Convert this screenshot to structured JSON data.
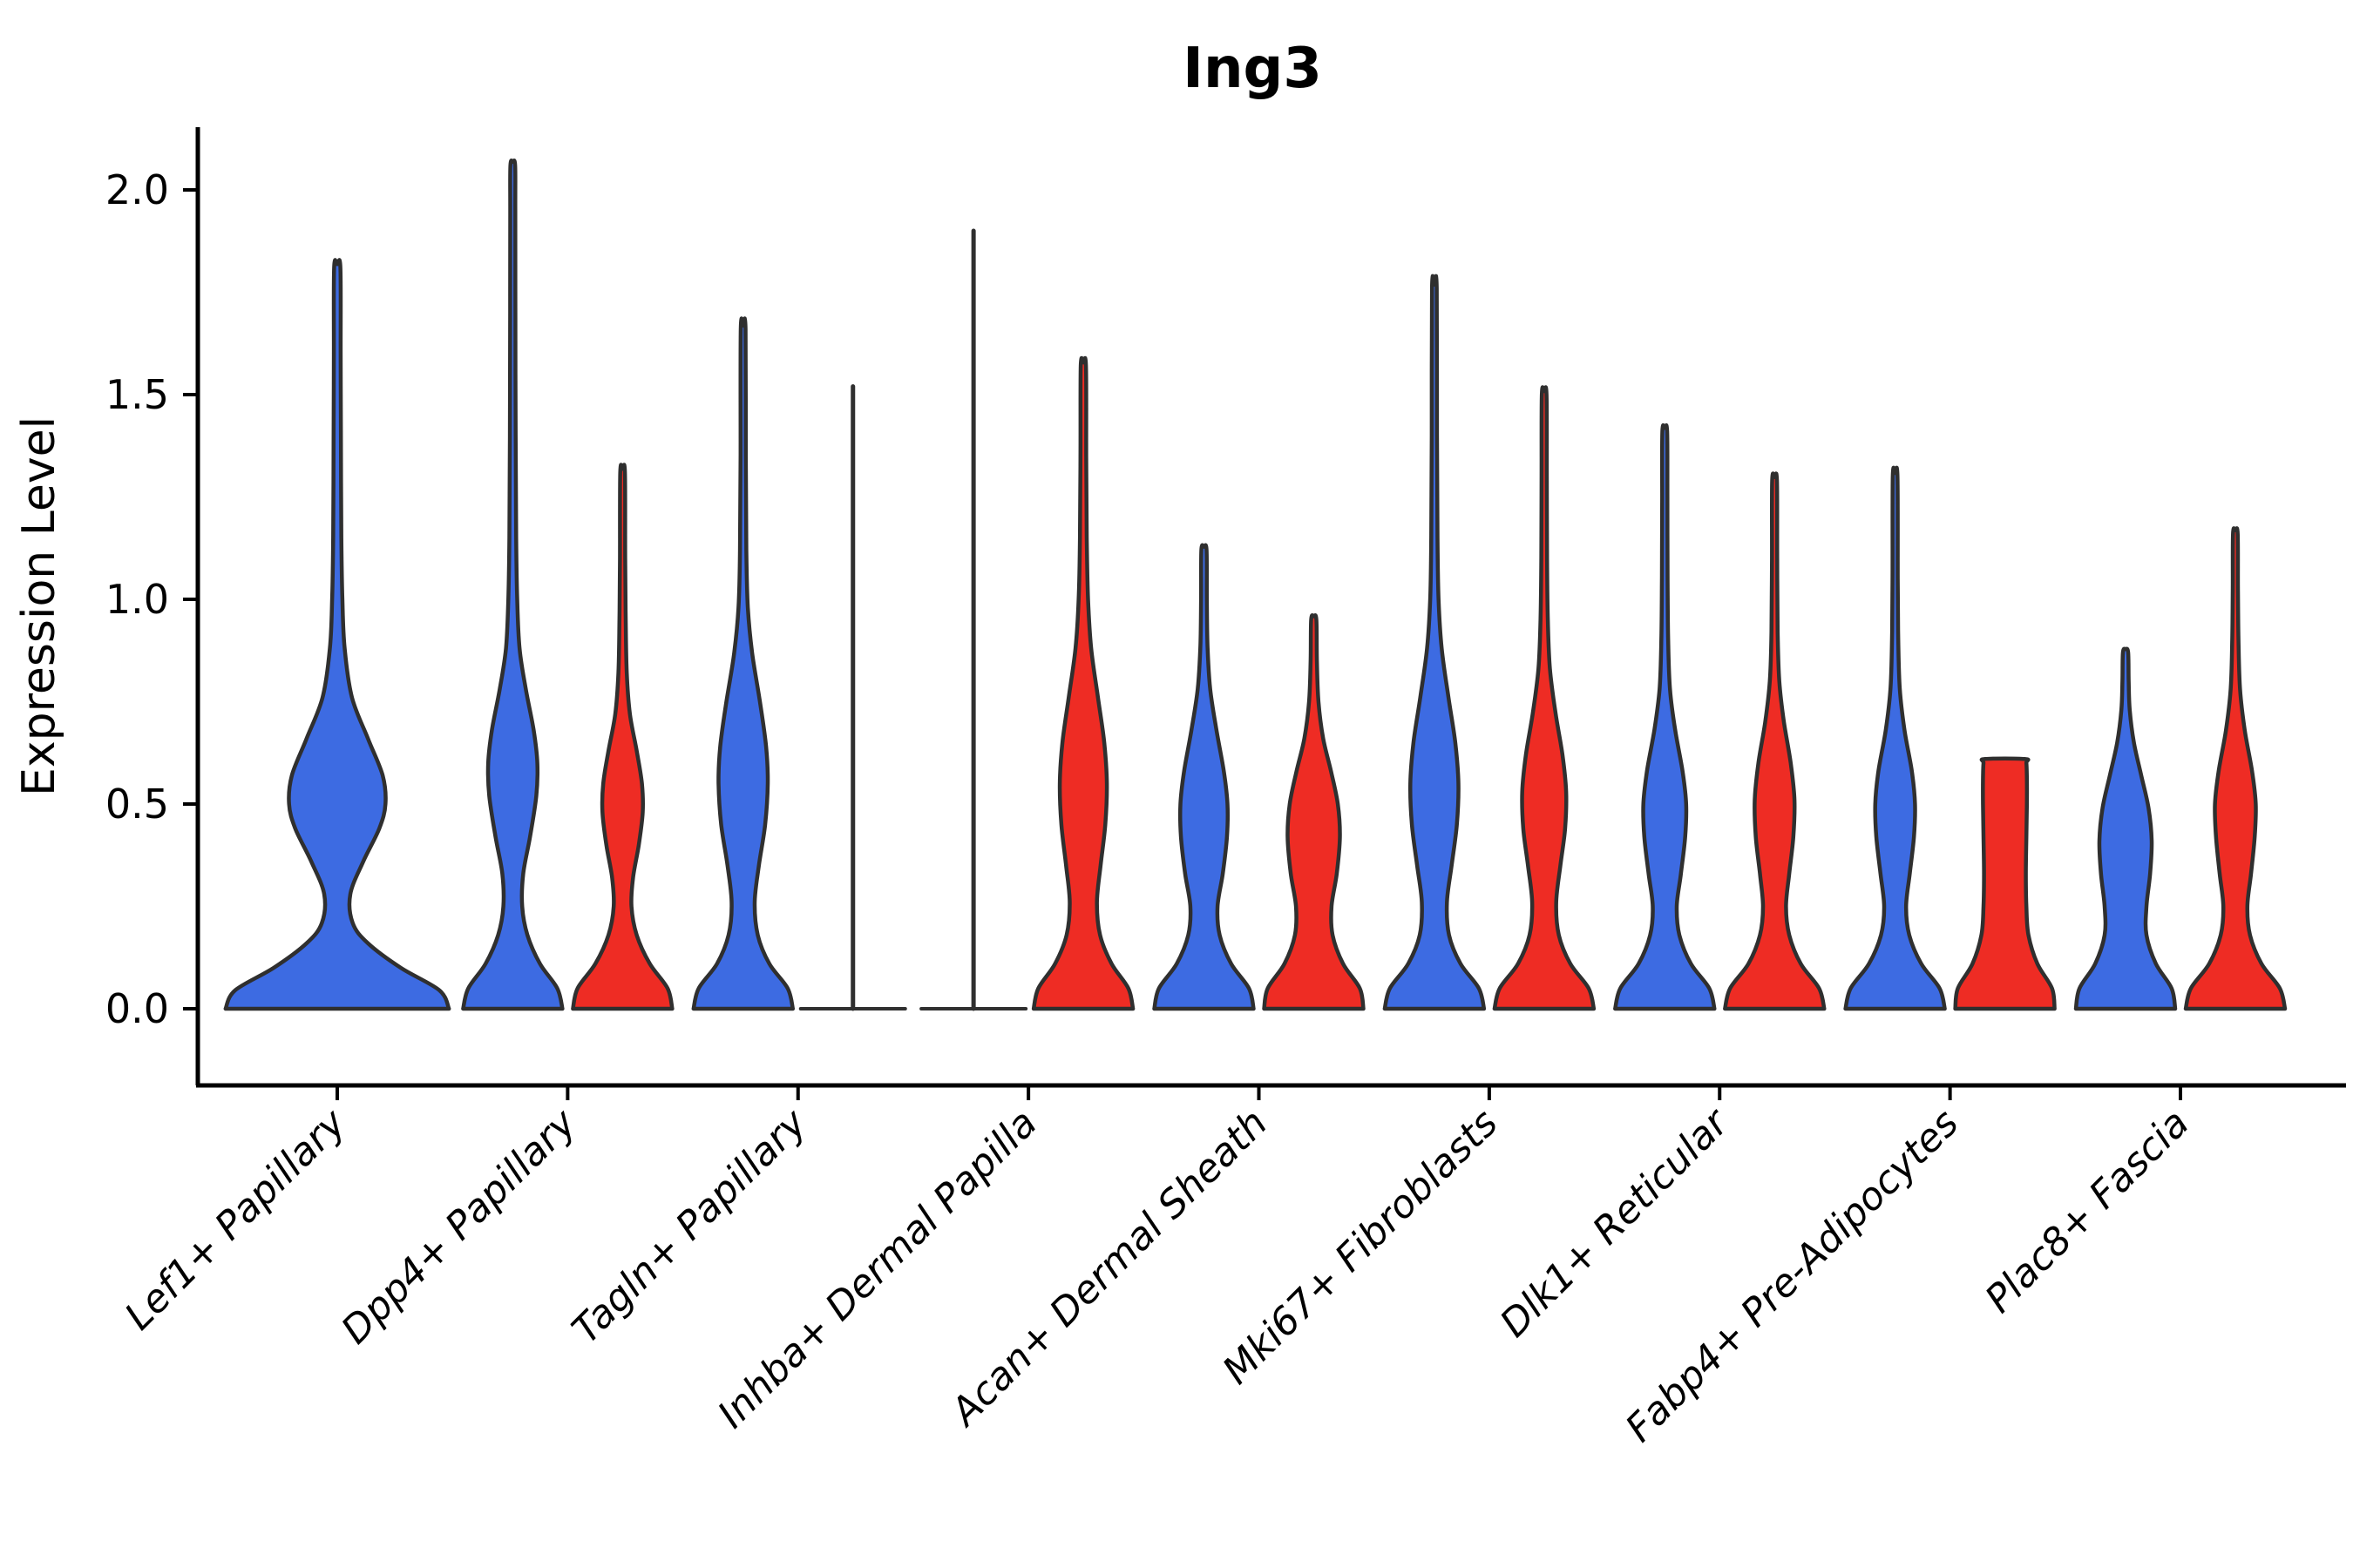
{
  "title": "Ing3",
  "chart_data": {
    "type": "violin",
    "title": "Ing3",
    "xlabel": "",
    "ylabel": "Expression Level",
    "ylim": [
      -0.19,
      2.35
    ],
    "yticks": [
      0.0,
      0.5,
      1.0,
      1.5,
      2.0
    ],
    "ytick_labels": [
      "0.0",
      "0.5",
      "1.0",
      "1.5",
      "2.0"
    ],
    "grid": "off",
    "legend": "none",
    "colors": {
      "blue": "#3D6BE2",
      "red": "#EE2C24",
      "outline": "#2F2F2F",
      "axis": "#000000"
    },
    "categories": [
      "Lef1+ Papillary",
      "Dpp4+ Papillary",
      "Tagln+ Papillary",
      "Inhba+ Dermal Papilla",
      "Acan+ Dermal Sheath",
      "Mki67+ Fibroblasts",
      "Dlk1+ Reticular",
      "Fabp4+ Pre-Adipocytes",
      "Plac8+ Fascia"
    ],
    "violins": [
      {
        "category": "Lef1+ Papillary",
        "side": "center",
        "color": "blue",
        "shape": "violin",
        "max_expression": 1.81,
        "width_scale": 2.17,
        "profile": [
          [
            0,
            0.985
          ],
          [
            0.045,
            0.9
          ],
          [
            0.1,
            0.56
          ],
          [
            0.16,
            0.27
          ],
          [
            0.21,
            0.135
          ],
          [
            0.28,
            0.115
          ],
          [
            0.36,
            0.23
          ],
          [
            0.44,
            0.37
          ],
          [
            0.5,
            0.425
          ],
          [
            0.57,
            0.4
          ],
          [
            0.66,
            0.27
          ],
          [
            0.76,
            0.13
          ],
          [
            0.88,
            0.065
          ],
          [
            1.0,
            0.045
          ],
          [
            1.15,
            0.036
          ],
          [
            1.4,
            0.032
          ],
          [
            1.6,
            0.03
          ],
          [
            1.81,
            0.028
          ]
        ]
      },
      {
        "category": "Dpp4+ Papillary",
        "side": "left",
        "color": "blue",
        "shape": "violin",
        "max_expression": 2.06,
        "width_scale": 1,
        "profile": [
          [
            0,
            0.95
          ],
          [
            0.05,
            0.85
          ],
          [
            0.11,
            0.52
          ],
          [
            0.18,
            0.28
          ],
          [
            0.25,
            0.18
          ],
          [
            0.33,
            0.2
          ],
          [
            0.42,
            0.33
          ],
          [
            0.52,
            0.45
          ],
          [
            0.6,
            0.47
          ],
          [
            0.68,
            0.4
          ],
          [
            0.78,
            0.25
          ],
          [
            0.88,
            0.13
          ],
          [
            1.0,
            0.085
          ],
          [
            1.15,
            0.065
          ],
          [
            1.4,
            0.055
          ],
          [
            1.7,
            0.05
          ],
          [
            1.95,
            0.048
          ],
          [
            2.06,
            0.045
          ]
        ]
      },
      {
        "category": "Dpp4+ Papillary",
        "side": "right",
        "color": "red",
        "shape": "violin",
        "max_expression": 1.31,
        "width_scale": 1,
        "profile": [
          [
            0,
            0.95
          ],
          [
            0.05,
            0.86
          ],
          [
            0.11,
            0.52
          ],
          [
            0.18,
            0.27
          ],
          [
            0.25,
            0.17
          ],
          [
            0.32,
            0.2
          ],
          [
            0.4,
            0.31
          ],
          [
            0.48,
            0.385
          ],
          [
            0.55,
            0.37
          ],
          [
            0.63,
            0.27
          ],
          [
            0.72,
            0.14
          ],
          [
            0.82,
            0.08
          ],
          [
            0.95,
            0.06
          ],
          [
            1.1,
            0.05
          ],
          [
            1.31,
            0.045
          ]
        ]
      },
      {
        "category": "Tagln+ Papillary",
        "side": "left",
        "color": "blue",
        "shape": "violin",
        "max_expression": 1.66,
        "width_scale": 1,
        "profile": [
          [
            0,
            0.95
          ],
          [
            0.05,
            0.85
          ],
          [
            0.11,
            0.5
          ],
          [
            0.18,
            0.28
          ],
          [
            0.26,
            0.22
          ],
          [
            0.35,
            0.3
          ],
          [
            0.45,
            0.42
          ],
          [
            0.55,
            0.47
          ],
          [
            0.64,
            0.44
          ],
          [
            0.75,
            0.32
          ],
          [
            0.87,
            0.17
          ],
          [
            0.98,
            0.09
          ],
          [
            1.12,
            0.06
          ],
          [
            1.35,
            0.05
          ],
          [
            1.66,
            0.045
          ]
        ]
      },
      {
        "category": "Tagln+ Papillary",
        "side": "right",
        "color": "red",
        "shape": "line",
        "max_expression": 1.52,
        "width_scale": 1,
        "profile": []
      },
      {
        "category": "Inhba+ Dermal Papilla",
        "side": "left",
        "color": "blue",
        "shape": "line",
        "max_expression": 1.9,
        "width_scale": 1,
        "profile": []
      },
      {
        "category": "Inhba+ Dermal Papilla",
        "side": "right",
        "color": "red",
        "shape": "violin",
        "max_expression": 1.57,
        "width_scale": 1,
        "profile": [
          [
            0,
            0.95
          ],
          [
            0.05,
            0.86
          ],
          [
            0.11,
            0.54
          ],
          [
            0.18,
            0.32
          ],
          [
            0.26,
            0.26
          ],
          [
            0.35,
            0.33
          ],
          [
            0.45,
            0.42
          ],
          [
            0.55,
            0.45
          ],
          [
            0.65,
            0.4
          ],
          [
            0.76,
            0.28
          ],
          [
            0.88,
            0.15
          ],
          [
            1.0,
            0.09
          ],
          [
            1.15,
            0.065
          ],
          [
            1.35,
            0.055
          ],
          [
            1.57,
            0.05
          ]
        ]
      },
      {
        "category": "Acan+ Dermal Sheath",
        "side": "left",
        "color": "blue",
        "shape": "violin",
        "max_expression": 1.12,
        "width_scale": 1,
        "profile": [
          [
            0,
            0.95
          ],
          [
            0.05,
            0.86
          ],
          [
            0.11,
            0.52
          ],
          [
            0.18,
            0.3
          ],
          [
            0.25,
            0.26
          ],
          [
            0.33,
            0.36
          ],
          [
            0.42,
            0.44
          ],
          [
            0.5,
            0.45
          ],
          [
            0.58,
            0.38
          ],
          [
            0.68,
            0.24
          ],
          [
            0.78,
            0.12
          ],
          [
            0.88,
            0.07
          ],
          [
            1.0,
            0.055
          ],
          [
            1.12,
            0.05
          ]
        ]
      },
      {
        "category": "Acan+ Dermal Sheath",
        "side": "right",
        "color": "red",
        "shape": "violin",
        "max_expression": 0.95,
        "width_scale": 1,
        "profile": [
          [
            0,
            0.95
          ],
          [
            0.05,
            0.88
          ],
          [
            0.11,
            0.56
          ],
          [
            0.18,
            0.36
          ],
          [
            0.25,
            0.34
          ],
          [
            0.33,
            0.44
          ],
          [
            0.42,
            0.5
          ],
          [
            0.5,
            0.46
          ],
          [
            0.58,
            0.33
          ],
          [
            0.66,
            0.18
          ],
          [
            0.75,
            0.09
          ],
          [
            0.85,
            0.06
          ],
          [
            0.95,
            0.05
          ]
        ]
      },
      {
        "category": "Mki67+ Fibroblasts",
        "side": "left",
        "color": "blue",
        "shape": "violin",
        "max_expression": 1.76,
        "width_scale": 1,
        "profile": [
          [
            0,
            0.95
          ],
          [
            0.05,
            0.85
          ],
          [
            0.11,
            0.5
          ],
          [
            0.18,
            0.28
          ],
          [
            0.26,
            0.24
          ],
          [
            0.35,
            0.33
          ],
          [
            0.45,
            0.43
          ],
          [
            0.55,
            0.46
          ],
          [
            0.65,
            0.4
          ],
          [
            0.76,
            0.27
          ],
          [
            0.88,
            0.14
          ],
          [
            1.0,
            0.08
          ],
          [
            1.15,
            0.06
          ],
          [
            1.4,
            0.05
          ],
          [
            1.76,
            0.045
          ]
        ]
      },
      {
        "category": "Mki67+ Fibroblasts",
        "side": "right",
        "color": "red",
        "shape": "violin",
        "max_expression": 1.5,
        "width_scale": 1,
        "profile": [
          [
            0,
            0.95
          ],
          [
            0.05,
            0.85
          ],
          [
            0.11,
            0.5
          ],
          [
            0.18,
            0.28
          ],
          [
            0.26,
            0.23
          ],
          [
            0.35,
            0.31
          ],
          [
            0.44,
            0.4
          ],
          [
            0.53,
            0.42
          ],
          [
            0.62,
            0.35
          ],
          [
            0.72,
            0.22
          ],
          [
            0.83,
            0.11
          ],
          [
            0.95,
            0.07
          ],
          [
            1.1,
            0.055
          ],
          [
            1.3,
            0.05
          ],
          [
            1.5,
            0.045
          ]
        ]
      },
      {
        "category": "Dlk1+ Reticular",
        "side": "left",
        "color": "blue",
        "shape": "violin",
        "max_expression": 1.41,
        "width_scale": 1,
        "profile": [
          [
            0,
            0.95
          ],
          [
            0.05,
            0.85
          ],
          [
            0.11,
            0.5
          ],
          [
            0.18,
            0.28
          ],
          [
            0.25,
            0.23
          ],
          [
            0.33,
            0.31
          ],
          [
            0.42,
            0.39
          ],
          [
            0.5,
            0.41
          ],
          [
            0.58,
            0.34
          ],
          [
            0.68,
            0.2
          ],
          [
            0.78,
            0.1
          ],
          [
            0.9,
            0.065
          ],
          [
            1.05,
            0.055
          ],
          [
            1.25,
            0.05
          ],
          [
            1.41,
            0.045
          ]
        ]
      },
      {
        "category": "Dlk1+ Reticular",
        "side": "right",
        "color": "red",
        "shape": "violin",
        "max_expression": 1.29,
        "width_scale": 1,
        "profile": [
          [
            0,
            0.95
          ],
          [
            0.05,
            0.85
          ],
          [
            0.11,
            0.5
          ],
          [
            0.18,
            0.28
          ],
          [
            0.25,
            0.22
          ],
          [
            0.33,
            0.28
          ],
          [
            0.42,
            0.36
          ],
          [
            0.51,
            0.38
          ],
          [
            0.6,
            0.31
          ],
          [
            0.7,
            0.18
          ],
          [
            0.8,
            0.09
          ],
          [
            0.92,
            0.06
          ],
          [
            1.1,
            0.05
          ],
          [
            1.29,
            0.045
          ]
        ]
      },
      {
        "category": "Fabp4+ Pre-Adipocytes",
        "side": "left",
        "color": "blue",
        "shape": "violin",
        "max_expression": 1.3,
        "width_scale": 1,
        "profile": [
          [
            0,
            0.95
          ],
          [
            0.05,
            0.85
          ],
          [
            0.11,
            0.5
          ],
          [
            0.18,
            0.27
          ],
          [
            0.25,
            0.21
          ],
          [
            0.33,
            0.28
          ],
          [
            0.42,
            0.36
          ],
          [
            0.5,
            0.38
          ],
          [
            0.58,
            0.32
          ],
          [
            0.68,
            0.18
          ],
          [
            0.78,
            0.09
          ],
          [
            0.9,
            0.06
          ],
          [
            1.05,
            0.05
          ],
          [
            1.3,
            0.045
          ]
        ]
      },
      {
        "category": "Fabp4+ Pre-Adipocytes",
        "side": "right",
        "color": "red",
        "shape": "plateau",
        "max_expression": 0.61,
        "width_scale": 1,
        "profile": [
          [
            0,
            0.95
          ],
          [
            0.05,
            0.9
          ],
          [
            0.11,
            0.62
          ],
          [
            0.18,
            0.45
          ],
          [
            0.25,
            0.41
          ],
          [
            0.33,
            0.4
          ],
          [
            0.42,
            0.41
          ],
          [
            0.5,
            0.42
          ],
          [
            0.56,
            0.42
          ],
          [
            0.6,
            0.41
          ],
          [
            0.61,
            0.38
          ]
        ]
      },
      {
        "category": "Plac8+ Fascia",
        "side": "left",
        "color": "blue",
        "shape": "violin",
        "max_expression": 0.87,
        "width_scale": 1,
        "profile": [
          [
            0,
            0.95
          ],
          [
            0.05,
            0.88
          ],
          [
            0.11,
            0.58
          ],
          [
            0.18,
            0.4
          ],
          [
            0.25,
            0.4
          ],
          [
            0.33,
            0.47
          ],
          [
            0.41,
            0.5
          ],
          [
            0.49,
            0.44
          ],
          [
            0.57,
            0.3
          ],
          [
            0.65,
            0.16
          ],
          [
            0.73,
            0.08
          ],
          [
            0.8,
            0.06
          ],
          [
            0.87,
            0.05
          ]
        ]
      },
      {
        "category": "Plac8+ Fascia",
        "side": "right",
        "color": "red",
        "shape": "violin",
        "max_expression": 1.16,
        "width_scale": 1,
        "profile": [
          [
            0,
            0.95
          ],
          [
            0.05,
            0.85
          ],
          [
            0.11,
            0.5
          ],
          [
            0.18,
            0.28
          ],
          [
            0.25,
            0.23
          ],
          [
            0.33,
            0.3
          ],
          [
            0.42,
            0.37
          ],
          [
            0.5,
            0.39
          ],
          [
            0.58,
            0.32
          ],
          [
            0.68,
            0.18
          ],
          [
            0.78,
            0.09
          ],
          [
            0.9,
            0.06
          ],
          [
            1.02,
            0.05
          ],
          [
            1.16,
            0.045
          ]
        ]
      }
    ]
  }
}
